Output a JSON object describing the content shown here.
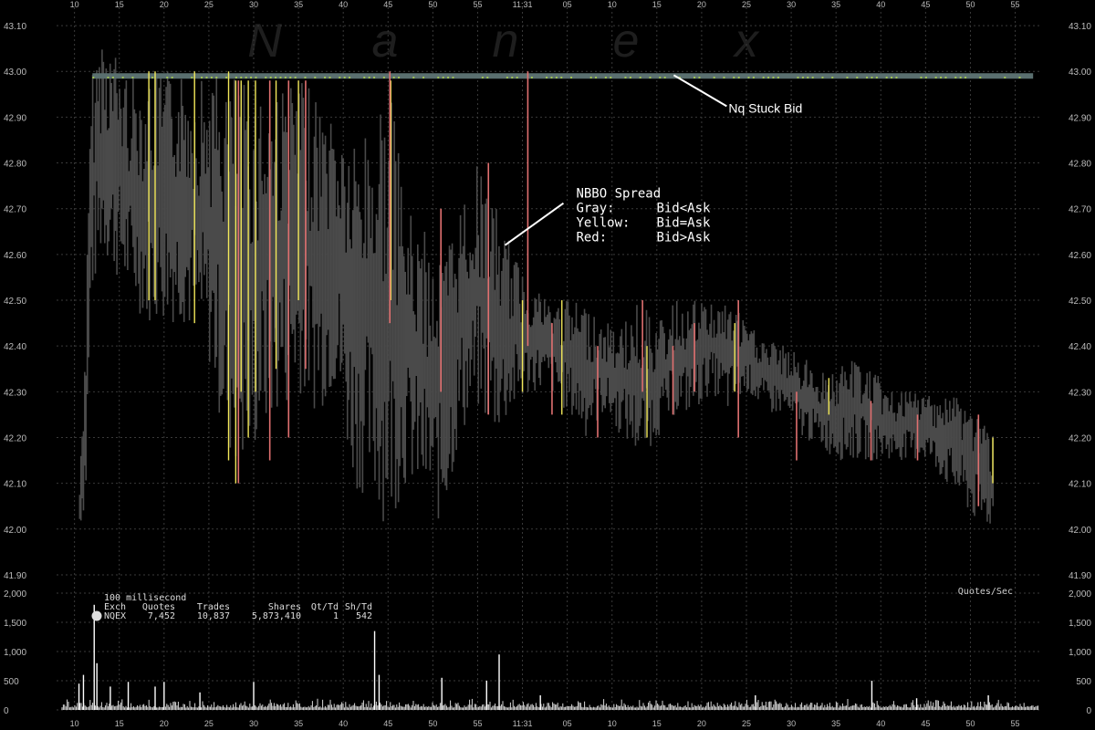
{
  "watermark": [
    "N",
    "a",
    "n",
    "e",
    "x"
  ],
  "x_axis": {
    "ticks": [
      "10",
      "15",
      "20",
      "25",
      "30",
      "35",
      "40",
      "45",
      "50",
      "55",
      "11:31",
      "05",
      "10",
      "15",
      "20",
      "25",
      "30",
      "35",
      "40",
      "45",
      "50",
      "55"
    ]
  },
  "chart_data": [
    {
      "type": "area",
      "ylim": [
        41.86,
        43.14
      ],
      "y_ticks": [
        "41.90",
        "42.00",
        "42.10",
        "42.20",
        "42.30",
        "42.40",
        "42.50",
        "42.60",
        "42.70",
        "42.80",
        "42.90",
        "43.00",
        "43.10"
      ],
      "series": [
        {
          "name": "Gray: Bid<Ask",
          "color": "#4a4a4a",
          "bands": [
            [
              10.5,
              42.0,
              42.1
            ],
            [
              11.2,
              42.05,
              42.49
            ],
            [
              11.8,
              42.49,
              42.99
            ],
            [
              13,
              42.6,
              43.1
            ],
            [
              16,
              42.5,
              43.0
            ],
            [
              18,
              42.45,
              43.0
            ],
            [
              22,
              42.45,
              43.0
            ],
            [
              25,
              42.35,
              43.0
            ],
            [
              27,
              42.15,
              43.0
            ],
            [
              29,
              42.12,
              42.98
            ],
            [
              31,
              42.2,
              42.98
            ],
            [
              33,
              42.25,
              42.98
            ],
            [
              35,
              42.3,
              42.98
            ],
            [
              37,
              42.25,
              42.95
            ],
            [
              39,
              42.3,
              42.92
            ],
            [
              41,
              42.1,
              42.85
            ],
            [
              43,
              42.05,
              42.9
            ],
            [
              45,
              42.0,
              42.98
            ],
            [
              47,
              42.1,
              42.7
            ],
            [
              49,
              42.05,
              42.65
            ],
            [
              51,
              42.0,
              42.6
            ],
            [
              53,
              42.2,
              42.72
            ],
            [
              55,
              42.25,
              42.8
            ],
            [
              57,
              42.2,
              42.7
            ],
            [
              59,
              42.25,
              42.6
            ],
            [
              61,
              42.3,
              42.55
            ],
            [
              63,
              42.3,
              42.5
            ],
            [
              65,
              42.25,
              42.5
            ],
            [
              67,
              42.2,
              42.5
            ],
            [
              69,
              42.25,
              42.45
            ],
            [
              71,
              42.2,
              42.45
            ],
            [
              73,
              42.15,
              42.5
            ],
            [
              75,
              42.2,
              42.45
            ],
            [
              77,
              42.25,
              42.5
            ],
            [
              79,
              42.25,
              42.5
            ],
            [
              81,
              42.3,
              42.5
            ],
            [
              83,
              42.25,
              42.5
            ],
            [
              85,
              42.3,
              42.45
            ],
            [
              87,
              42.25,
              42.42
            ],
            [
              89,
              42.25,
              42.4
            ],
            [
              91,
              42.2,
              42.38
            ],
            [
              93,
              42.18,
              42.35
            ],
            [
              95,
              42.15,
              42.35
            ],
            [
              97,
              42.15,
              42.38
            ],
            [
              99,
              42.15,
              42.35
            ],
            [
              101,
              42.15,
              42.3
            ],
            [
              103,
              42.15,
              42.3
            ],
            [
              105,
              42.15,
              42.3
            ],
            [
              107,
              42.1,
              42.3
            ],
            [
              109,
              42.05,
              42.3
            ],
            [
              111,
              42.0,
              42.25
            ],
            [
              112.6,
              42.0,
              42.2
            ]
          ]
        },
        {
          "name": "Yellow: Bid=Ask",
          "color": "#f2e85a",
          "lines": [
            [
              18.3,
              42.5,
              43.0
            ],
            [
              19,
              42.5,
              43.0
            ],
            [
              23.4,
              42.45,
              43.0
            ],
            [
              27.2,
              42.15,
              43.0
            ],
            [
              28,
              42.1,
              42.98
            ],
            [
              28.6,
              42.3,
              42.98
            ],
            [
              29.4,
              42.2,
              42.98
            ],
            [
              30.2,
              42.3,
              42.98
            ],
            [
              32.5,
              42.35,
              42.98
            ],
            [
              35,
              42.5,
              42.98
            ],
            [
              45.3,
              42.5,
              42.98
            ],
            [
              60,
              42.3,
              42.5
            ],
            [
              64.4,
              42.25,
              42.5
            ],
            [
              73.9,
              42.2,
              42.4
            ],
            [
              83.7,
              42.3,
              42.45
            ],
            [
              94.2,
              42.25,
              42.33
            ],
            [
              112.5,
              42.1,
              42.2
            ]
          ]
        },
        {
          "name": "Red: Bid>Ask",
          "color": "#e07070",
          "lines": [
            [
              28.3,
              42.1,
              42.98
            ],
            [
              31.8,
              42.15,
              42.98
            ],
            [
              33.9,
              42.2,
              42.98
            ],
            [
              35.8,
              42.35,
              42.98
            ],
            [
              45.2,
              42.45,
              43.0
            ],
            [
              50.9,
              42.3,
              42.7
            ],
            [
              56.2,
              42.25,
              42.8
            ],
            [
              60.6,
              42.4,
              43.0
            ],
            [
              63.3,
              42.25,
              42.45
            ],
            [
              68.4,
              42.2,
              42.4
            ],
            [
              73.4,
              42.3,
              42.5
            ],
            [
              76.8,
              42.25,
              42.4
            ],
            [
              79.2,
              42.3,
              42.45
            ],
            [
              84.1,
              42.2,
              42.5
            ],
            [
              90.6,
              42.15,
              42.3
            ],
            [
              98.9,
              42.15,
              42.28
            ],
            [
              104.1,
              42.15,
              42.25
            ],
            [
              110.9,
              42.05,
              42.25
            ]
          ]
        },
        {
          "name": "Nq Stuck Bid",
          "color": "#5a6f6f",
          "segment": [
            [
              12,
              42.99
            ],
            [
              117,
              42.99
            ]
          ]
        }
      ],
      "annotations": [
        {
          "label": "Nq Stuck Bid",
          "x": 83,
          "y": 42.92
        },
        {
          "title": "NBBO Spread",
          "items": [
            {
              "key": "Gray:",
              "value": "Bid<Ask"
            },
            {
              "key": "Yellow:",
              "value": "Bid=Ask"
            },
            {
              "key": "Red:",
              "value": "Bid>Ask"
            }
          ],
          "x": 66,
          "y": 42.72
        }
      ]
    },
    {
      "type": "bar",
      "label": "Quotes/Sec",
      "ylim": [
        0,
        2000
      ],
      "y_ticks": [
        "0",
        "500",
        "1,000",
        "1,500",
        "2,000"
      ],
      "spikes": [
        [
          10.5,
          450
        ],
        [
          11,
          600
        ],
        [
          12.2,
          1800
        ],
        [
          12.5,
          800
        ],
        [
          14,
          400
        ],
        [
          16,
          480
        ],
        [
          19,
          400
        ],
        [
          20,
          480
        ],
        [
          24,
          300
        ],
        [
          30,
          480
        ],
        [
          43.5,
          1350
        ],
        [
          44,
          600
        ],
        [
          51,
          550
        ],
        [
          56,
          500
        ],
        [
          57.4,
          950
        ],
        [
          62,
          250
        ],
        [
          86,
          250
        ],
        [
          99,
          500
        ],
        [
          104,
          200
        ],
        [
          112,
          250
        ]
      ],
      "noise": [
        160,
        40
      ]
    }
  ],
  "stats": {
    "interval": "100 millisecond",
    "headers": [
      "Exch",
      "Quotes",
      "Trades",
      "Shares",
      "Qt/Td",
      "Sh/Td"
    ],
    "row": [
      "NQEX",
      "7,452",
      "10,837",
      "5,873,410",
      "1",
      "542"
    ]
  }
}
